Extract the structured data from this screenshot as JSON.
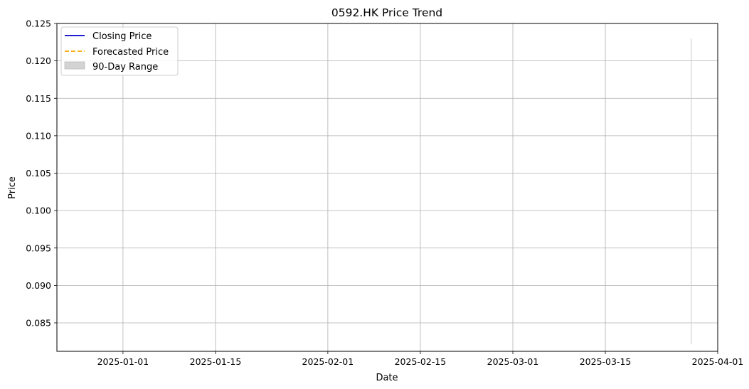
{
  "chart_data": {
    "type": "line",
    "title": "0592.HK Price Trend",
    "xlabel": "Date",
    "ylabel": "Price",
    "xlim": [
      "2024-12-22",
      "2025-04-01"
    ],
    "ylim": [
      0.0812,
      0.125
    ],
    "x_ticks": [
      "2025-01-01",
      "2025-01-15",
      "2025-02-01",
      "2025-02-15",
      "2025-03-01",
      "2025-03-15",
      "2025-04-01"
    ],
    "y_ticks": [
      "0.085",
      "0.090",
      "0.095",
      "0.100",
      "0.105",
      "0.110",
      "0.115",
      "0.120",
      "0.125"
    ],
    "grid": true,
    "legend_position": "top-left",
    "series": [
      {
        "name": "Closing Price",
        "color": "#0000cc",
        "style": "solid",
        "points": []
      },
      {
        "name": "Forecasted Price",
        "color": "#ffa500",
        "style": "dashed",
        "points": []
      }
    ],
    "range_band": {
      "name": "90-Day Range",
      "color": "#d3d3d3",
      "x": "2025-03-28",
      "low": 0.0822,
      "high": 0.123
    }
  }
}
